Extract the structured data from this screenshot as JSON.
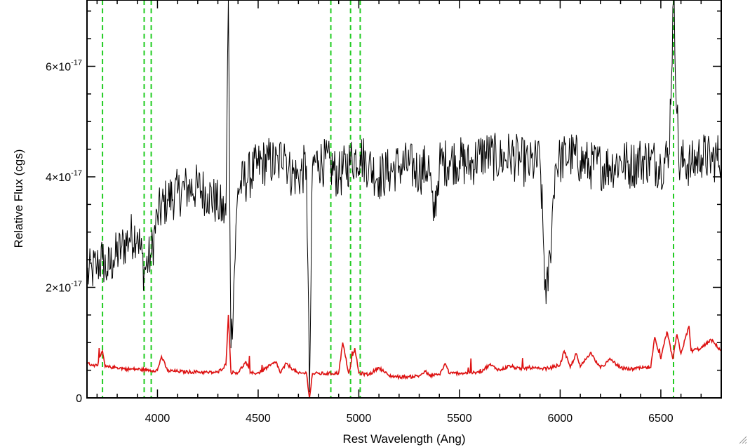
{
  "chart_data": {
    "type": "line",
    "title": "",
    "xlabel": "Rest Wavelength (Ang)",
    "ylabel": "Relative Flux (cgs)",
    "xlim": [
      3650,
      6800
    ],
    "ylim": [
      0,
      7.2e-17
    ],
    "xticks": [
      4000,
      4500,
      5000,
      5500,
      6000,
      6500
    ],
    "xtick_labels": [
      "4000",
      "4500",
      "5000",
      "5500",
      "6000",
      "6500"
    ],
    "yticks": [
      {
        "value": 0,
        "mantissa": "0",
        "exponent": ""
      },
      {
        "value": 2e-17,
        "mantissa": "2×10",
        "exponent": "-17"
      },
      {
        "value": 4e-17,
        "mantissa": "4×10",
        "exponent": "-17"
      },
      {
        "value": 6e-17,
        "mantissa": "6×10",
        "exponent": "-17"
      }
    ],
    "grid": false,
    "legend": "none",
    "vertical_lines": {
      "color": "#22cc22",
      "style": "dashed",
      "x": [
        3727,
        3934,
        3969,
        4861,
        4959,
        5007,
        6563
      ]
    },
    "series": [
      {
        "color": "#000000",
        "x": [
          3650,
          3675,
          3700,
          3727,
          3750,
          3780,
          3820,
          3860,
          3900,
          3934,
          3969,
          4000,
          4050,
          4100,
          4150,
          4200,
          4250,
          4300,
          4340,
          4352,
          4365,
          4400,
          4450,
          4500,
          4550,
          4600,
          4630,
          4650,
          4700,
          4740,
          4755,
          4770,
          4800,
          4861,
          4900,
          4959,
          5007,
          5050,
          5100,
          5150,
          5200,
          5250,
          5300,
          5350,
          5370,
          5400,
          5450,
          5500,
          5550,
          5600,
          5650,
          5700,
          5750,
          5800,
          5850,
          5900,
          5930,
          5950,
          5975,
          6000,
          6050,
          6100,
          6150,
          6200,
          6250,
          6300,
          6350,
          6400,
          6450,
          6500,
          6540,
          6563,
          6590,
          6620,
          6650,
          6700,
          6750,
          6800
        ],
        "values": [
          2.2e-17,
          2.3e-17,
          2.4e-17,
          2.5e-17,
          2.3e-17,
          2.5e-17,
          2.7e-17,
          2.9e-17,
          3e-17,
          2.3e-17,
          2.6e-17,
          3.3e-17,
          3.6e-17,
          3.7e-17,
          3.8e-17,
          3.8e-17,
          3.7e-17,
          3.5e-17,
          3.3e-17,
          7.2e-17,
          9e-18,
          3.8e-17,
          4e-17,
          4.2e-17,
          4.3e-17,
          4.2e-17,
          4.6e-17,
          4.1e-17,
          4e-17,
          4.2e-17,
          1e-18,
          4.2e-17,
          4.3e-17,
          4.2e-17,
          4e-17,
          4.3e-17,
          4.4e-17,
          4.2e-17,
          4e-17,
          4.1e-17,
          4.2e-17,
          4.2e-17,
          4.1e-17,
          4.2e-17,
          3.2e-17,
          4.2e-17,
          4.3e-17,
          4.3e-17,
          4.2e-17,
          4.4e-17,
          4.4e-17,
          4.3e-17,
          4.4e-17,
          4.3e-17,
          4.2e-17,
          4.3e-17,
          1.7e-17,
          2.6e-17,
          4.2e-17,
          4.3e-17,
          4.4e-17,
          4.3e-17,
          4.2e-17,
          4.2e-17,
          4.2e-17,
          4.3e-17,
          4.2e-17,
          4.3e-17,
          4.3e-17,
          4.2e-17,
          4.4e-17,
          7.2e-17,
          4.2e-17,
          4.3e-17,
          4.2e-17,
          4.4e-17,
          4.3e-17,
          4.4e-17
        ]
      },
      {
        "color": "#dd1111",
        "x": [
          3650,
          3700,
          3727,
          3740,
          3800,
          3850,
          3900,
          3950,
          4000,
          4020,
          4050,
          4100,
          4150,
          4200,
          4250,
          4300,
          4340,
          4352,
          4365,
          4400,
          4440,
          4460,
          4500,
          4590,
          4610,
          4640,
          4700,
          4740,
          4755,
          4770,
          4800,
          4850,
          4900,
          4920,
          4950,
          4980,
          5000,
          5050,
          5100,
          5150,
          5200,
          5250,
          5300,
          5330,
          5350,
          5400,
          5430,
          5450,
          5500,
          5550,
          5600,
          5650,
          5700,
          5750,
          5800,
          5850,
          5900,
          5950,
          6000,
          6020,
          6050,
          6080,
          6100,
          6150,
          6200,
          6250,
          6300,
          6350,
          6400,
          6450,
          6470,
          6500,
          6530,
          6560,
          6580,
          6600,
          6640,
          6650,
          6700,
          6750,
          6800
        ],
        "values": [
          6.2e-18,
          5.8e-18,
          8.5e-18,
          5.6e-18,
          5.5e-18,
          5.2e-18,
          5.2e-18,
          5e-18,
          5e-18,
          7.5e-18,
          4.9e-18,
          4.8e-18,
          4.7e-18,
          4.7e-18,
          4.6e-18,
          4.6e-18,
          6e-18,
          1.5e-17,
          4.6e-18,
          4.6e-18,
          6.5e-18,
          4.5e-18,
          4.5e-18,
          6.5e-18,
          4.5e-18,
          6.2e-18,
          4.4e-18,
          4.5e-18,
          0.0,
          4.4e-18,
          4.4e-18,
          4.4e-18,
          4.5e-18,
          1e-17,
          4.4e-18,
          9e-18,
          4.5e-18,
          4.2e-18,
          5.5e-18,
          4e-18,
          3.8e-18,
          3.8e-18,
          4e-18,
          4.8e-18,
          4e-18,
          4.2e-18,
          6.2e-18,
          4.4e-18,
          4.5e-18,
          4.5e-18,
          4.6e-18,
          6e-18,
          5e-18,
          5.8e-18,
          5.2e-18,
          5.5e-18,
          5.2e-18,
          5.4e-18,
          6e-18,
          8.5e-18,
          5.5e-18,
          8e-18,
          5.6e-18,
          8.2e-18,
          5.4e-18,
          7e-18,
          5.4e-18,
          5.2e-18,
          5.4e-18,
          5.5e-18,
          1.1e-17,
          7e-18,
          1.2e-17,
          7e-18,
          1.15e-17,
          8e-18,
          1.3e-17,
          8.5e-18,
          9e-18,
          1.05e-17,
          8.5e-18
        ]
      }
    ]
  }
}
